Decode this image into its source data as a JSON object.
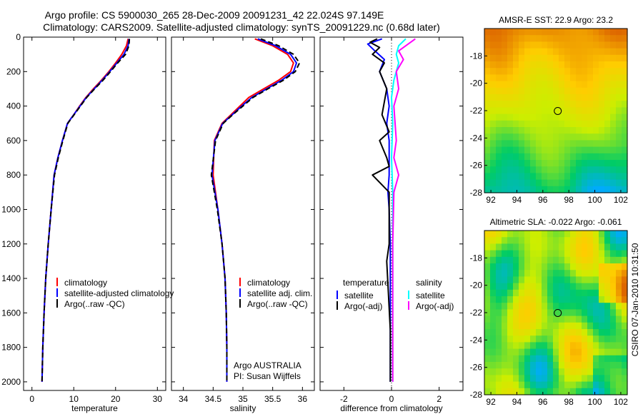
{
  "figure": {
    "title_line1": "Argo profile: CS 5900030_265 28-Dec-2009 20091231_42 22.024S 97.149E",
    "title_line2": "Climatology: CARS2009. Satellite-adjusted climatology: synTS_20091229.nc (0.68d later)",
    "credit": "CSIRO 07-Jan-2010 10:31:50",
    "argo_note_line1": "Argo AUSTRALIA",
    "argo_note_line2": "PI: Susan Wijffels"
  },
  "chart_data": [
    {
      "type": "line",
      "id": "temperature",
      "xlabel": "temperature",
      "ylabel": "",
      "xlim": [
        -2,
        32
      ],
      "ylim": [
        2050,
        0
      ],
      "xticks": [
        0,
        10,
        20,
        30
      ],
      "yticks": [
        0,
        200,
        400,
        600,
        800,
        1000,
        1200,
        1400,
        1600,
        1800,
        2000
      ],
      "grid": false,
      "legend": [
        "climatology",
        "satellite-adjusted climatology",
        "Argo(..raw -QC)"
      ],
      "legend_position": "lower-right",
      "series": [
        {
          "name": "climatology",
          "color": "#ff0000",
          "x": [
            23.0,
            22.6,
            21.5,
            20.0,
            18.4,
            16.6,
            14.7,
            12.9,
            11.4,
            10.0,
            8.5,
            7.3,
            6.2,
            5.3,
            4.6,
            3.9,
            3.3,
            2.9,
            2.6,
            2.4
          ],
          "y": [
            10,
            50,
            100,
            150,
            200,
            250,
            300,
            350,
            400,
            450,
            500,
            600,
            700,
            800,
            1000,
            1200,
            1400,
            1600,
            1800,
            2000
          ]
        },
        {
          "name": "satellite-adjusted climatology",
          "color": "#0000ff",
          "x": [
            23.2,
            23.0,
            22.0,
            20.3,
            18.6,
            16.8,
            14.9,
            13.0,
            11.5,
            10.0,
            8.5,
            7.3,
            6.2,
            5.3,
            4.6,
            3.9,
            3.3,
            2.9,
            2.6,
            2.4
          ],
          "y": [
            10,
            50,
            100,
            150,
            200,
            250,
            300,
            350,
            400,
            450,
            500,
            600,
            700,
            800,
            1000,
            1200,
            1400,
            1600,
            1800,
            2000
          ]
        },
        {
          "name": "Argo(..raw -QC)",
          "color": "#000000",
          "dash": "7 4",
          "x": [
            23.3,
            23.2,
            22.4,
            20.5,
            18.8,
            17.0,
            15.0,
            13.1,
            11.6,
            10.1,
            8.6,
            7.4,
            6.3,
            5.4,
            4.6,
            3.9,
            3.3,
            2.9,
            2.6,
            2.4
          ],
          "y": [
            10,
            50,
            100,
            150,
            200,
            250,
            300,
            350,
            400,
            450,
            500,
            600,
            700,
            800,
            1000,
            1200,
            1400,
            1600,
            1800,
            2000
          ]
        }
      ]
    },
    {
      "type": "line",
      "id": "salinity",
      "xlabel": "salinity",
      "ylabel": "",
      "xlim": [
        33.8,
        36.2
      ],
      "ylim": [
        2050,
        0
      ],
      "xticks": [
        34,
        34.5,
        35,
        35.5,
        36
      ],
      "yticks": [
        0,
        200,
        400,
        600,
        800,
        1000,
        1200,
        1400,
        1600,
        1800,
        2000
      ],
      "grid": false,
      "legend": [
        "climatology",
        "satellite adj. clim.",
        "Argo(..raw -QC)"
      ],
      "legend_position": "lower-right",
      "series": [
        {
          "name": "climatology",
          "color": "#ff0000",
          "x": [
            35.2,
            35.5,
            35.75,
            35.85,
            35.8,
            35.6,
            35.35,
            35.1,
            34.95,
            34.8,
            34.65,
            34.52,
            34.5,
            34.58,
            34.65,
            34.7,
            34.72,
            34.73,
            34.73
          ],
          "y": [
            10,
            50,
            100,
            150,
            200,
            250,
            300,
            350,
            400,
            450,
            500,
            600,
            800,
            1000,
            1200,
            1400,
            1600,
            1800,
            2000
          ]
        },
        {
          "name": "satellite adj. clim.",
          "color": "#0000ff",
          "x": [
            35.25,
            35.55,
            35.8,
            35.9,
            35.85,
            35.65,
            35.4,
            35.15,
            34.98,
            34.82,
            34.66,
            34.53,
            34.48,
            34.58,
            34.65,
            34.7,
            34.72,
            34.73,
            34.73
          ],
          "y": [
            10,
            50,
            100,
            150,
            200,
            250,
            300,
            350,
            400,
            450,
            500,
            600,
            800,
            1000,
            1200,
            1400,
            1600,
            1800,
            2000
          ]
        },
        {
          "name": "Argo(..raw -QC)",
          "color": "#000000",
          "dash": "7 4",
          "x": [
            35.3,
            35.6,
            35.85,
            35.95,
            35.88,
            35.68,
            35.42,
            35.17,
            35.0,
            34.83,
            34.67,
            34.54,
            34.47,
            34.57,
            34.65,
            34.7,
            34.72,
            34.73,
            34.73
          ],
          "y": [
            10,
            50,
            100,
            150,
            200,
            250,
            300,
            350,
            400,
            450,
            500,
            600,
            800,
            1000,
            1200,
            1400,
            1600,
            1800,
            2000
          ]
        }
      ]
    },
    {
      "type": "line",
      "id": "difference",
      "xlabel": "difference from climatology",
      "ylabel": "",
      "xlim": [
        -3,
        3
      ],
      "ylim": [
        2050,
        0
      ],
      "xticks": [
        -2,
        0,
        2
      ],
      "yticks": [
        0,
        200,
        400,
        600,
        800,
        1000,
        1200,
        1400,
        1600,
        1800,
        2000
      ],
      "grid": false,
      "legend_headers": [
        "temperature",
        "salinity"
      ],
      "legend": [
        "satellite",
        "Argo(-adj)",
        "satellite",
        "Argo(-adj)"
      ],
      "legend_position": "lower-center",
      "series": [
        {
          "name": "temperature satellite",
          "color": "#0000ff",
          "x": [
            -0.4,
            -1.0,
            -0.7,
            -0.3,
            -0.5,
            -0.2,
            -0.1,
            -0.2,
            -0.1,
            -0.1,
            -0.1,
            -0.15,
            -0.1,
            -0.05,
            -0.05,
            -0.05,
            -0.05
          ],
          "y": [
            10,
            40,
            80,
            130,
            200,
            300,
            400,
            500,
            600,
            700,
            800,
            900,
            1000,
            1200,
            1500,
            1800,
            2000
          ]
        },
        {
          "name": "temperature Argo(-adj)",
          "color": "#000000",
          "x": [
            -0.6,
            -0.9,
            -0.5,
            -0.8,
            -0.3,
            -0.5,
            -0.2,
            -0.4,
            -0.1,
            -0.5,
            -0.2,
            -0.1,
            -0.8,
            -0.1,
            -0.1,
            -0.2,
            -0.05,
            -0.05
          ],
          "y": [
            10,
            30,
            60,
            100,
            150,
            200,
            300,
            450,
            550,
            600,
            700,
            750,
            800,
            900,
            1200,
            1300,
            1700,
            2000
          ]
        },
        {
          "name": "salinity satellite",
          "color": "#00ffff",
          "x": [
            0.6,
            0.3,
            0.2,
            0.3,
            0.1,
            0.0,
            0.05,
            0.0,
            0.05,
            0.05,
            0.05,
            0.05,
            0.05
          ],
          "y": [
            10,
            50,
            100,
            150,
            250,
            350,
            500,
            700,
            900,
            1200,
            1500,
            1800,
            2000
          ]
        },
        {
          "name": "salinity Argo(-adj)",
          "color": "#ff00ff",
          "x": [
            1.0,
            0.7,
            0.3,
            0.5,
            0.2,
            0.3,
            0.1,
            0.2,
            0.1,
            0.3,
            0.1,
            0.05,
            0.05
          ],
          "y": [
            10,
            40,
            80,
            130,
            200,
            300,
            400,
            600,
            700,
            800,
            900,
            1200,
            2000
          ]
        }
      ]
    },
    {
      "type": "heatmap",
      "id": "sst_map",
      "title": "AMSR-E SST: 22.9 Argo: 23.2",
      "xlim": [
        91.5,
        102.5
      ],
      "ylim": [
        -28,
        -16
      ],
      "xticks": [
        92,
        94,
        96,
        98,
        100,
        102
      ],
      "yticks": [
        -18,
        -20,
        -22,
        -24,
        -26,
        -28
      ],
      "colors": {
        "low": "#00aaff",
        "mid": "#00cc66",
        "mid2": "#ccee00",
        "high": "#ffcc00",
        "top": "#dd6600"
      },
      "marker": {
        "x": 97.149,
        "y": -22.024
      },
      "gradient": "warm-north"
    },
    {
      "type": "heatmap",
      "id": "sla_map",
      "title": "Altimetric SLA: -0.022 Argo: -0.061",
      "xlim": [
        91.5,
        102.5
      ],
      "ylim": [
        -28,
        -16
      ],
      "xticks": [
        92,
        94,
        96,
        98,
        100,
        102
      ],
      "yticks": [
        -18,
        -20,
        -22,
        -24,
        -26,
        -28
      ],
      "colors": {
        "low": "#00aaff",
        "mid": "#00cc66",
        "mid2": "#ccee00",
        "high": "#ffcc00",
        "top": "#dd6600"
      },
      "marker": {
        "x": 97.149,
        "y": -22.024
      },
      "gradient": "patchy"
    }
  ]
}
